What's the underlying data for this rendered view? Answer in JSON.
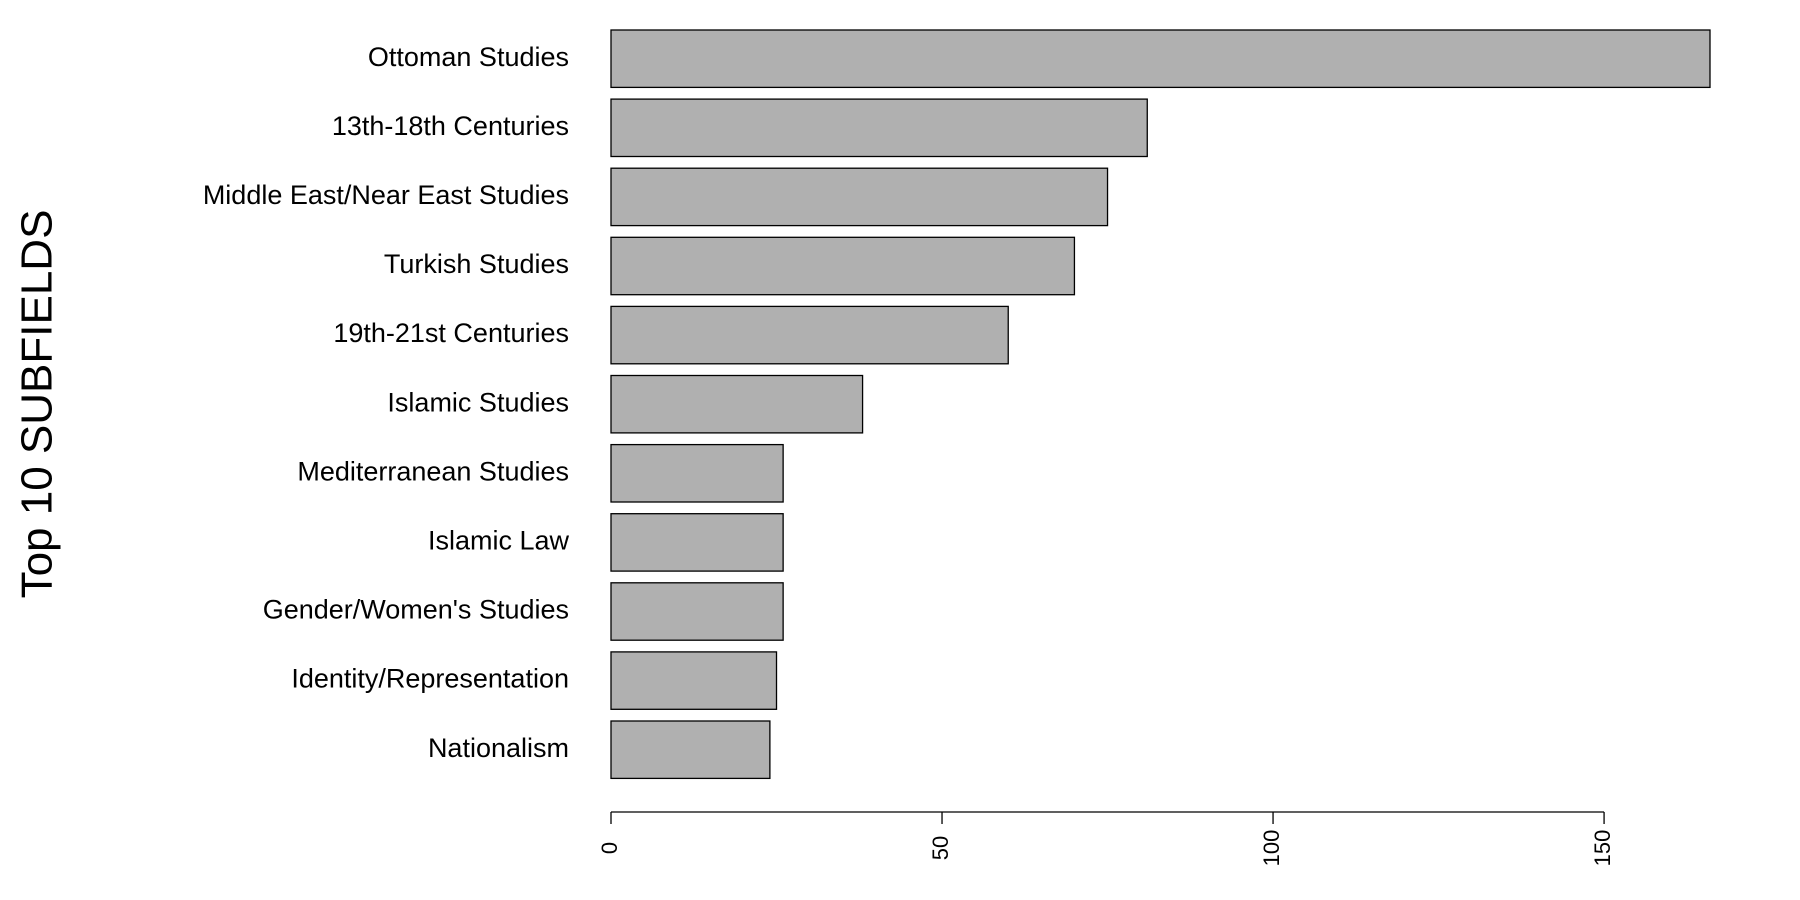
{
  "chart_data": {
    "type": "bar",
    "orientation": "horizontal",
    "y_axis_label": "Top 10 SUBFIELDS",
    "categories": [
      "Ottoman Studies",
      "13th-18th Centuries",
      "Middle East/Near East Studies",
      "Turkish Studies",
      "19th-21st Centuries",
      "Islamic Studies",
      "Mediterranean Studies",
      "Islamic Law",
      "Gender/Women's Studies",
      "Identity/Representation",
      "Nationalism"
    ],
    "values": [
      166,
      81,
      75,
      70,
      60,
      38,
      26,
      26,
      26,
      25,
      24
    ],
    "color": "#b0b0b0",
    "xlim": [
      0,
      166
    ],
    "xticks": [
      0,
      50,
      100,
      150
    ]
  }
}
